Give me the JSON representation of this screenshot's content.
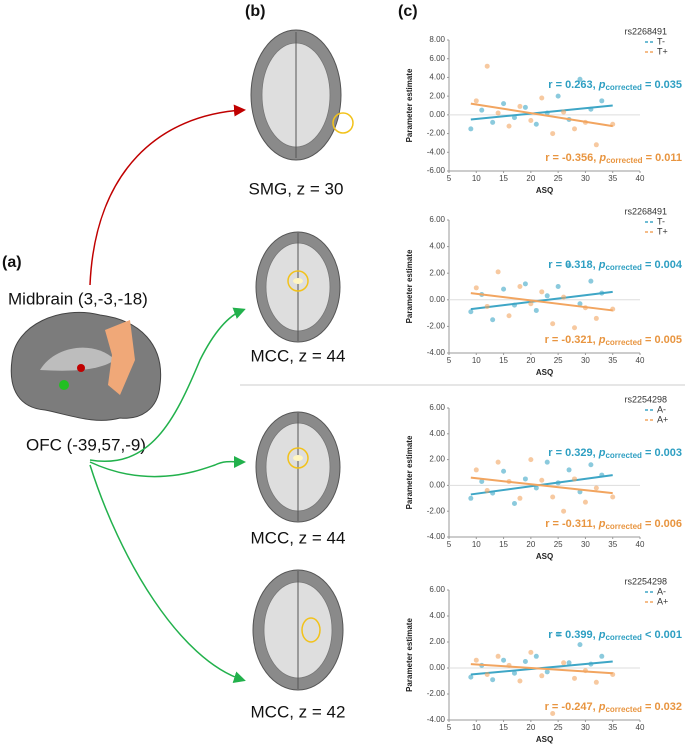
{
  "figure": {
    "panels": [
      "(a)",
      "(b)",
      "(c)"
    ],
    "regions": {
      "midbrain": "Midbrain (3,-3,-18)",
      "ofc": "OFC (-39,57,-9)"
    },
    "slices": [
      "SMG, z = 30",
      "MCC, z = 44",
      "MCC, z = 44",
      "MCC, z = 42"
    ]
  },
  "chart_data": [
    {
      "type": "scatter",
      "legend_title": "rs2268491",
      "xlabel": "ASQ",
      "ylabel": "Parameter estimate",
      "xlim": [
        5,
        40
      ],
      "xticks": [
        5,
        10,
        15,
        20,
        25,
        30,
        35,
        40
      ],
      "ylim": [
        -6,
        8
      ],
      "yticks": [
        {
          "value": -6,
          "label": "-6.00"
        },
        {
          "value": -4,
          "label": "-4.00"
        },
        {
          "value": -2,
          "label": "-2.00"
        },
        {
          "value": 0,
          "label": "0.00"
        },
        {
          "value": 2,
          "label": "2.00"
        },
        {
          "value": 4,
          "label": "4.00"
        },
        {
          "value": 6,
          "label": "6.00"
        },
        {
          "value": 8,
          "label": "8.00"
        }
      ],
      "series": [
        {
          "name": "T-",
          "color": "#3ea6c6",
          "x": [
            9,
            11,
            13,
            15,
            17,
            19,
            21,
            23,
            25,
            27,
            29,
            31,
            33
          ],
          "values": [
            -1.5,
            0.5,
            -0.8,
            1.2,
            -0.3,
            0.8,
            -1.0,
            0.2,
            2.0,
            -0.5,
            3.8,
            0.6,
            1.5
          ],
          "fit": {
            "x": [
              9,
              35
            ],
            "values": [
              -0.5,
              1.0
            ]
          }
        },
        {
          "name": "T+",
          "color": "#f2a560",
          "x": [
            10,
            12,
            14,
            16,
            18,
            20,
            22,
            24,
            26,
            28,
            30,
            32,
            35
          ],
          "values": [
            1.5,
            5.2,
            0.2,
            -1.2,
            0.9,
            -0.6,
            1.8,
            -2.0,
            0.3,
            -1.5,
            -0.8,
            -3.2,
            -1.0
          ],
          "fit": {
            "x": [
              9,
              35
            ],
            "values": [
              1.2,
              -1.2
            ]
          }
        }
      ],
      "annotations": [
        {
          "color": "#2e9fc2",
          "r": "r = 0.263, ",
          "p": "p",
          "sub": "corrected",
          "rest": " = 0.035"
        },
        {
          "color": "#e89540",
          "r": "r = -0.356, ",
          "p": "p",
          "sub": "corrected",
          "rest": " = 0.011"
        }
      ]
    },
    {
      "type": "scatter",
      "legend_title": "rs2268491",
      "xlabel": "ASQ",
      "ylabel": "Parameter estimate",
      "xlim": [
        5,
        40
      ],
      "xticks": [
        5,
        10,
        15,
        20,
        25,
        30,
        35,
        40
      ],
      "ylim": [
        -4,
        6
      ],
      "yticks": [
        {
          "value": -4,
          "label": "-4.00"
        },
        {
          "value": -2,
          "label": "-2.00"
        },
        {
          "value": 0,
          "label": "0.00"
        },
        {
          "value": 2,
          "label": "2.00"
        },
        {
          "value": 4,
          "label": "4.00"
        },
        {
          "value": 6,
          "label": "6.00"
        }
      ],
      "series": [
        {
          "name": "T-",
          "color": "#3ea6c6",
          "x": [
            9,
            11,
            13,
            15,
            17,
            19,
            21,
            23,
            25,
            27,
            29,
            31,
            33
          ],
          "values": [
            -0.9,
            0.4,
            -1.5,
            0.8,
            -0.4,
            1.2,
            -0.8,
            0.3,
            1.0,
            2.6,
            -0.3,
            1.4,
            0.5
          ],
          "fit": {
            "x": [
              9,
              35
            ],
            "values": [
              -0.7,
              0.6
            ]
          }
        },
        {
          "name": "T+",
          "color": "#f2a560",
          "x": [
            10,
            12,
            14,
            16,
            18,
            20,
            22,
            24,
            26,
            28,
            30,
            32,
            35
          ],
          "values": [
            0.9,
            -0.5,
            2.1,
            -1.2,
            1.0,
            -0.3,
            0.6,
            -1.8,
            0.2,
            -2.1,
            -0.6,
            -1.4,
            -0.7
          ],
          "fit": {
            "x": [
              9,
              35
            ],
            "values": [
              0.5,
              -0.8
            ]
          }
        }
      ],
      "annotations": [
        {
          "color": "#2e9fc2",
          "r": "r = 0.318, ",
          "p": "p",
          "sub": "corrected",
          "rest": " = 0.004"
        },
        {
          "color": "#e89540",
          "r": "r = -0.321, ",
          "p": "p",
          "sub": "corrected",
          "rest": " = 0.005"
        }
      ]
    },
    {
      "type": "scatter",
      "legend_title": "rs2254298",
      "xlabel": "ASQ",
      "ylabel": "Parameter estimate",
      "xlim": [
        5,
        40
      ],
      "xticks": [
        5,
        10,
        15,
        20,
        25,
        30,
        35,
        40
      ],
      "ylim": [
        -4,
        6
      ],
      "yticks": [
        {
          "value": -4,
          "label": "-4.00"
        },
        {
          "value": -2,
          "label": "-2.00"
        },
        {
          "value": 0,
          "label": "0.00"
        },
        {
          "value": 2,
          "label": "2.00"
        },
        {
          "value": 4,
          "label": "4.00"
        },
        {
          "value": 6,
          "label": "6.00"
        }
      ],
      "series": [
        {
          "name": "A-",
          "color": "#3ea6c6",
          "x": [
            9,
            11,
            13,
            15,
            17,
            19,
            21,
            23,
            25,
            27,
            29,
            31,
            33
          ],
          "values": [
            -1.0,
            0.3,
            -0.6,
            1.1,
            -1.4,
            0.5,
            -0.2,
            1.8,
            0.2,
            1.2,
            -0.5,
            1.6,
            0.8
          ],
          "fit": {
            "x": [
              9,
              35
            ],
            "values": [
              -0.7,
              0.8
            ]
          }
        },
        {
          "name": "A+",
          "color": "#f2a560",
          "x": [
            10,
            12,
            14,
            16,
            18,
            20,
            22,
            24,
            26,
            28,
            30,
            32,
            35
          ],
          "values": [
            1.2,
            -0.4,
            1.8,
            0.3,
            -1.0,
            2.0,
            0.4,
            -0.9,
            -2.0,
            0.5,
            -1.3,
            -0.2,
            -0.9
          ],
          "fit": {
            "x": [
              9,
              35
            ],
            "values": [
              0.6,
              -0.6
            ]
          }
        }
      ],
      "annotations": [
        {
          "color": "#2e9fc2",
          "r": "r = 0.329, ",
          "p": "p",
          "sub": "corrected",
          "rest": " = 0.003"
        },
        {
          "color": "#e89540",
          "r": "r = -0.311, ",
          "p": "p",
          "sub": "corrected",
          "rest": " = 0.006"
        }
      ]
    },
    {
      "type": "scatter",
      "legend_title": "rs2254298",
      "xlabel": "ASQ",
      "ylabel": "Parameter estimate",
      "xlim": [
        5,
        40
      ],
      "xticks": [
        5,
        10,
        15,
        20,
        25,
        30,
        35,
        40
      ],
      "ylim": [
        -4,
        6
      ],
      "yticks": [
        {
          "value": -4,
          "label": "-4.00"
        },
        {
          "value": -2,
          "label": "-2.00"
        },
        {
          "value": 0,
          "label": "0.00"
        },
        {
          "value": 2,
          "label": "2.00"
        },
        {
          "value": 4,
          "label": "4.00"
        },
        {
          "value": 6,
          "label": "6.00"
        }
      ],
      "series": [
        {
          "name": "A-",
          "color": "#3ea6c6",
          "x": [
            9,
            11,
            13,
            15,
            17,
            19,
            21,
            23,
            25,
            27,
            29,
            31,
            33
          ],
          "values": [
            -0.7,
            0.2,
            -0.9,
            0.6,
            -0.4,
            0.5,
            0.9,
            -0.3,
            2.6,
            0.4,
            1.8,
            0.3,
            0.9
          ],
          "fit": {
            "x": [
              9,
              35
            ],
            "values": [
              -0.5,
              0.5
            ]
          }
        },
        {
          "name": "A+",
          "color": "#f2a560",
          "x": [
            10,
            12,
            14,
            16,
            18,
            20,
            22,
            24,
            26,
            28,
            30,
            32,
            35
          ],
          "values": [
            0.6,
            -0.5,
            0.9,
            0.2,
            -1.0,
            1.2,
            -0.6,
            -3.5,
            0.4,
            -0.8,
            -0.2,
            -1.1,
            -0.5
          ],
          "fit": {
            "x": [
              9,
              35
            ],
            "values": [
              0.3,
              -0.4
            ]
          }
        }
      ],
      "annotations": [
        {
          "color": "#2e9fc2",
          "r": "r = 0.399, ",
          "p": "p",
          "sub": "corrected",
          "rest": " < 0.001"
        },
        {
          "color": "#e89540",
          "r": "r = -0.247, ",
          "p": "p",
          "sub": "corrected",
          "rest": " = 0.032"
        }
      ]
    }
  ]
}
